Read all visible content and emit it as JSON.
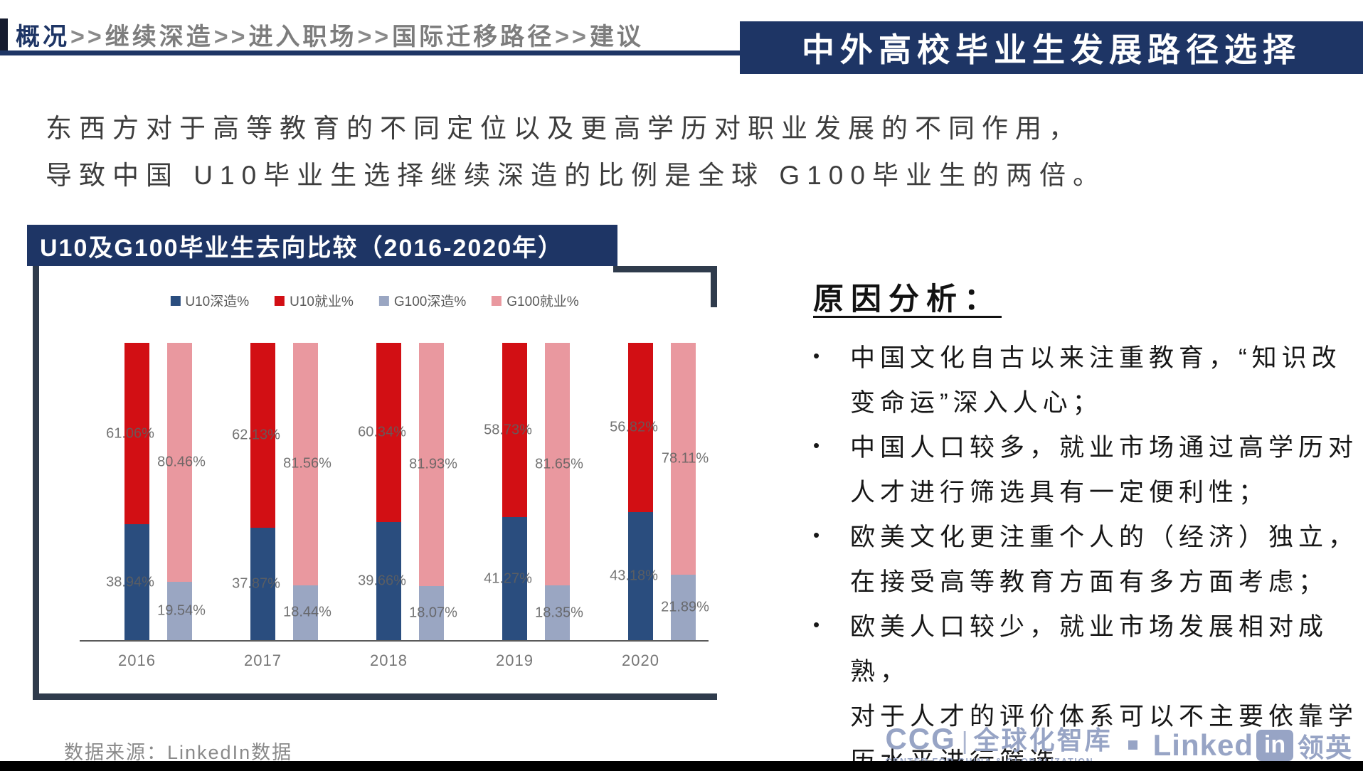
{
  "breadcrumb": {
    "separator": ">>",
    "items": [
      "概况",
      "继续深造",
      "进入职场",
      "国际迁移路径",
      "建议"
    ]
  },
  "header": {
    "title": "中外高校毕业生发展路径选择"
  },
  "intro": {
    "line1": "东西方对于高等教育的不同定位以及更高学历对职业发展的不同作用，",
    "line2": "导致中国 U10毕业生选择继续深造的比例是全球 G100毕业生的两倍。"
  },
  "chart": {
    "title": "U10及G100毕业生去向比较（2016-2020年）"
  },
  "chart_data": {
    "type": "bar",
    "stacked": true,
    "categories": [
      "2016",
      "2017",
      "2018",
      "2019",
      "2020"
    ],
    "series": [
      {
        "name": "U10深造%",
        "color": "#2a4d7e",
        "values": [
          38.94,
          37.87,
          39.66,
          41.27,
          43.18
        ]
      },
      {
        "name": "U10就业%",
        "color": "#d20f14",
        "values": [
          61.06,
          62.13,
          60.34,
          58.73,
          56.82
        ]
      },
      {
        "name": "G100深造%",
        "color": "#9aa6c2",
        "values": [
          19.54,
          18.44,
          18.07,
          18.35,
          21.89
        ]
      },
      {
        "name": "G100就业%",
        "color": "#e9989f",
        "values": [
          80.46,
          81.56,
          81.93,
          81.65,
          78.11
        ]
      }
    ],
    "ylim": [
      0,
      100
    ],
    "grid": false,
    "legend_position": "top",
    "value_label_suffix": "%"
  },
  "analysis": {
    "heading": "原因分析：",
    "bullets": [
      "中国文化自古以来注重教育，“知识改\n变命运”深入人心；",
      "中国人口较多，就业市场通过高学历对\n人才进行筛选具有一定便利性；",
      "欧美文化更注重个人的（经济）独立，\n在接受高等教育方面有多方面考虑；",
      "欧美人口较少，就业市场发展相对成熟，\n对于人才的评价体系可以不主要依靠学\n历水平进行筛选。"
    ]
  },
  "footer": {
    "source": "数据来源：LinkedIn数据",
    "ccg_acronym": "CCG",
    "ccg_divider": "|",
    "ccg_cn": "全球化智库",
    "ccg_sub": "CENTER FOR CHINA & GLOBALIZATION",
    "linkedin_word": "Linked",
    "linkedin_in": "in",
    "linkedin_cn": "领英"
  },
  "colors": {
    "accent_navy": "#1e3565",
    "frame_dark": "#2f3b4c",
    "value_label_gray": "#606060",
    "logo_blue": "#97a4c5"
  }
}
